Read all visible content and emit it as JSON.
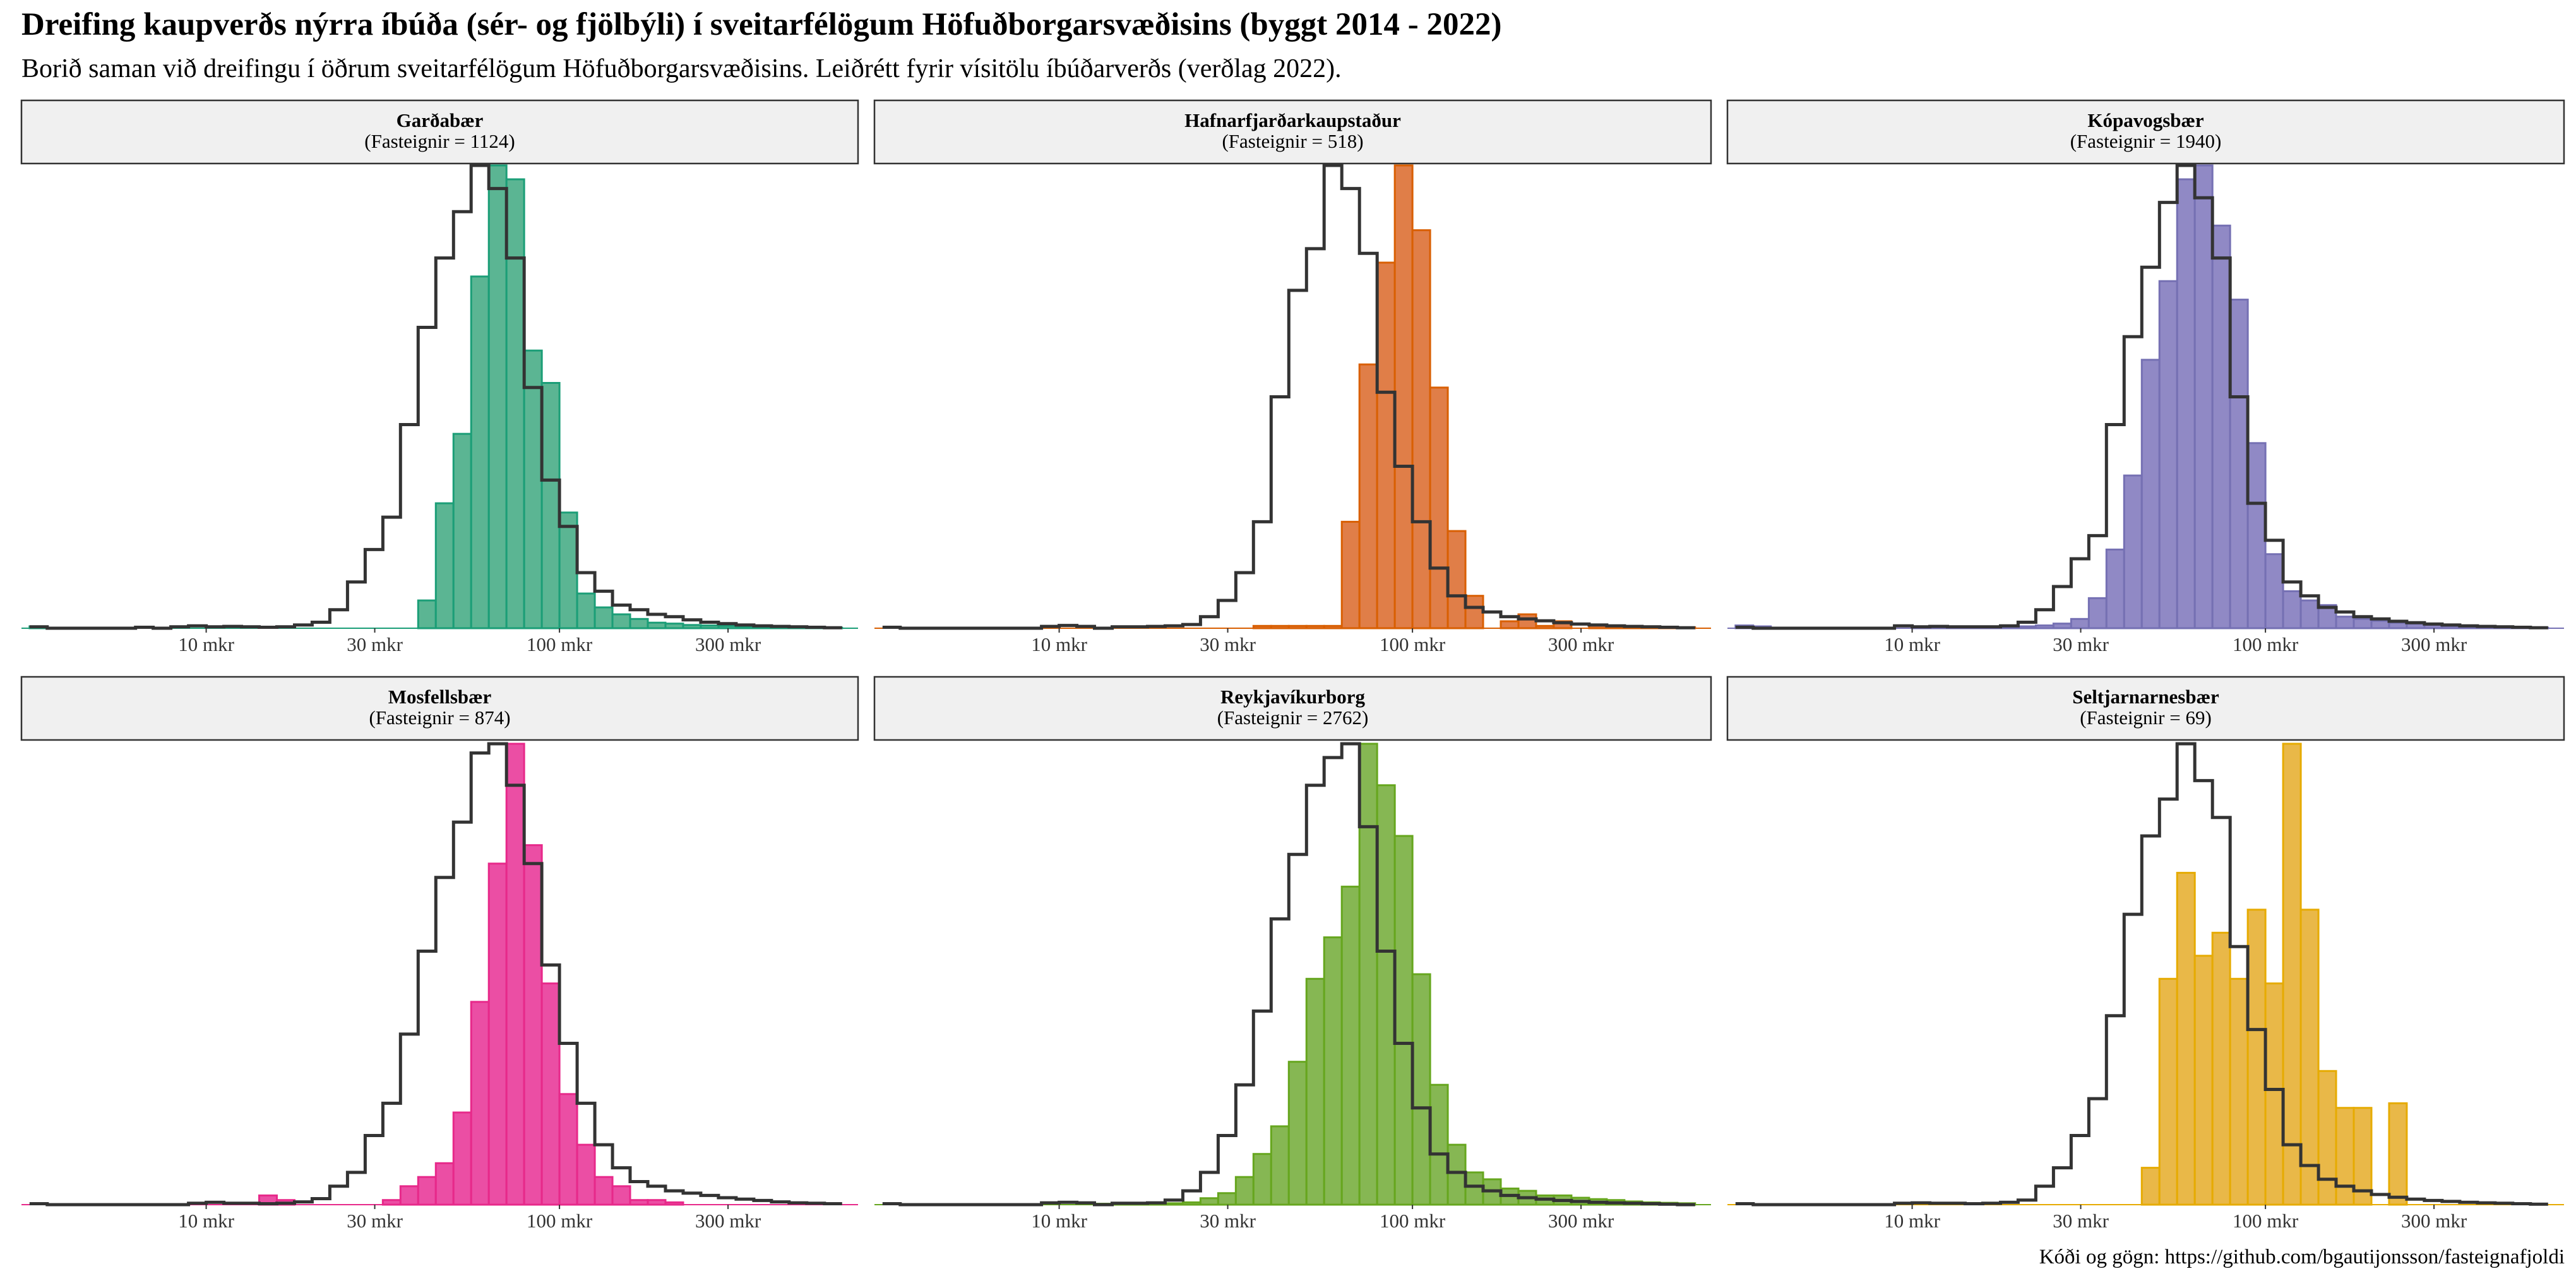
{
  "title": "Dreifing kaupverðs nýrra íbúða (sér- og fjölbýli) í sveitarfélögum Höfuðborgarsvæðisins (byggt 2014 - 2022)",
  "subtitle": "Borið saman við dreifingu í öðrum sveitarfélögum Höfuðborgarsvæðisins. Leiðrétt fyrir vísitölu íbúðarverðs (verðlag 2022).",
  "caption": "Kóði og gögn: https://github.com/bgautijonsson/fasteignafjoldi",
  "chart_data": {
    "type": "histogram",
    "x_scale": "log10",
    "x_unit": "mkr",
    "xlim": [
      3,
      700
    ],
    "x_tick_values": [
      10,
      30,
      100,
      300
    ],
    "x_tick_labels": [
      "10 mkr",
      "30 mkr",
      "100 mkr",
      "300 mkr"
    ],
    "bins": {
      "log10_start": 0.5,
      "log10_width": 0.05,
      "count": 46
    },
    "value_scale": "relative density (peak = 1)",
    "reference_series": "Önnur sveitarfélög Höfuðborgarsvæðisins (outline)",
    "panels": [
      {
        "name": "Garðabær",
        "count_label": "(Fasteignir = 1124)",
        "color": "#1B9E77",
        "fill": "#5BB593",
        "values": [
          0.004,
          0,
          0,
          0,
          0,
          0,
          0,
          0,
          0,
          0,
          0,
          0,
          0,
          0,
          0,
          0,
          0,
          0,
          0,
          0,
          0,
          0,
          0.06,
          0.27,
          0.42,
          0.76,
          1.0,
          0.97,
          0.6,
          0.53,
          0.25,
          0.075,
          0.045,
          0.03,
          0.02,
          0.012,
          0.01,
          0.007,
          0.006,
          0.005,
          0.004,
          0.003,
          0.002,
          0.002,
          0.001,
          0.001
        ],
        "reference": [
          0.003,
          0,
          0,
          0,
          0,
          0,
          0.002,
          0,
          0.003,
          0.005,
          0.003,
          0.004,
          0.003,
          0.002,
          0.003,
          0.007,
          0.013,
          0.04,
          0.1,
          0.17,
          0.24,
          0.44,
          0.65,
          0.8,
          0.9,
          1.0,
          0.95,
          0.8,
          0.52,
          0.32,
          0.22,
          0.12,
          0.08,
          0.05,
          0.04,
          0.03,
          0.025,
          0.018,
          0.013,
          0.01,
          0.007,
          0.005,
          0.004,
          0.003,
          0.002,
          0.001
        ]
      },
      {
        "name": "Hafnarfjarðarkaupstaður",
        "count_label": "(Fasteignir = 518)",
        "color": "#D95F02",
        "fill": "#E07E48",
        "values": [
          0,
          0,
          0,
          0,
          0,
          0,
          0,
          0,
          0,
          0,
          0,
          0,
          0,
          0,
          0,
          0,
          0,
          0,
          0,
          0,
          0,
          0.005,
          0.005,
          0.005,
          0.005,
          0.005,
          0.23,
          0.57,
          0.79,
          1.0,
          0.86,
          0.52,
          0.21,
          0.07,
          0,
          0.015,
          0.03,
          0.005,
          0.015,
          0,
          0.006,
          0.004,
          0.003,
          0.002,
          0.002,
          0.002
        ],
        "reference": [
          0.002,
          0,
          0,
          0,
          0,
          0,
          0,
          0,
          0,
          0.004,
          0.006,
          0.004,
          0,
          0.003,
          0.003,
          0.004,
          0.005,
          0.008,
          0.025,
          0.06,
          0.12,
          0.23,
          0.5,
          0.73,
          0.82,
          1.0,
          0.95,
          0.81,
          0.51,
          0.35,
          0.23,
          0.13,
          0.07,
          0.045,
          0.035,
          0.025,
          0.02,
          0.016,
          0.012,
          0.009,
          0.007,
          0.005,
          0.004,
          0.003,
          0.002,
          0.001
        ]
      },
      {
        "name": "Kópavogsbær",
        "count_label": "(Fasteignir = 1940)",
        "color": "#7570B3",
        "fill": "#9089C5",
        "values": [
          0.006,
          0.004,
          0,
          0,
          0,
          0,
          0,
          0,
          0,
          0,
          0.004,
          0.003,
          0.002,
          0.002,
          0.002,
          0.003,
          0.004,
          0.006,
          0.01,
          0.02,
          0.065,
          0.17,
          0.33,
          0.58,
          0.75,
          0.97,
          1.0,
          0.87,
          0.71,
          0.4,
          0.16,
          0.08,
          0.06,
          0.05,
          0.025,
          0.02,
          0.016,
          0.012,
          0.01,
          0.007,
          0.005,
          0.004,
          0.003,
          0.002,
          0.002,
          0.001
        ],
        "reference": [
          0.002,
          0,
          0,
          0,
          0,
          0,
          0,
          0,
          0,
          0.005,
          0.003,
          0.004,
          0.003,
          0.003,
          0.003,
          0.005,
          0.013,
          0.04,
          0.09,
          0.15,
          0.2,
          0.44,
          0.63,
          0.78,
          0.92,
          1.0,
          0.93,
          0.8,
          0.5,
          0.27,
          0.19,
          0.1,
          0.07,
          0.045,
          0.035,
          0.025,
          0.02,
          0.015,
          0.012,
          0.009,
          0.007,
          0.005,
          0.004,
          0.003,
          0.002,
          0.001
        ]
      },
      {
        "name": "Mosfellsbær",
        "count_label": "(Fasteignir = 874)",
        "color": "#E7298A",
        "fill": "#EB4EA4",
        "values": [
          0,
          0,
          0,
          0,
          0,
          0,
          0,
          0,
          0,
          0,
          0,
          0,
          0,
          0.02,
          0.01,
          0,
          0,
          0,
          0,
          0,
          0.01,
          0.04,
          0.06,
          0.09,
          0.2,
          0.44,
          0.74,
          1.0,
          0.78,
          0.48,
          0.24,
          0.13,
          0.06,
          0.04,
          0.01,
          0.01,
          0.005,
          0,
          0,
          0,
          0,
          0,
          0,
          0,
          0,
          0
        ],
        "reference": [
          0.002,
          0,
          0,
          0,
          0,
          0,
          0,
          0,
          0,
          0.003,
          0.005,
          0.003,
          0.003,
          0.002,
          0.003,
          0.006,
          0.013,
          0.04,
          0.07,
          0.15,
          0.22,
          0.37,
          0.55,
          0.71,
          0.83,
          0.98,
          1.0,
          0.91,
          0.74,
          0.52,
          0.35,
          0.22,
          0.13,
          0.08,
          0.05,
          0.04,
          0.03,
          0.025,
          0.02,
          0.015,
          0.012,
          0.009,
          0.006,
          0.004,
          0.003,
          0.002
        ]
      },
      {
        "name": "Reykjavíkurborg",
        "count_label": "(Fasteignir = 2762)",
        "color": "#66A61E",
        "fill": "#86B753",
        "values": [
          0,
          0,
          0,
          0,
          0,
          0,
          0,
          0,
          0,
          0,
          0,
          0,
          0.002,
          0.002,
          0.002,
          0.002,
          0.003,
          0.005,
          0.014,
          0.025,
          0.06,
          0.11,
          0.17,
          0.31,
          0.49,
          0.58,
          0.69,
          1.0,
          0.91,
          0.8,
          0.5,
          0.26,
          0.13,
          0.07,
          0.055,
          0.035,
          0.03,
          0.02,
          0.02,
          0.015,
          0.012,
          0.01,
          0.007,
          0.005,
          0.004,
          0.003
        ],
        "reference": [
          0.002,
          0,
          0,
          0,
          0,
          0,
          0,
          0,
          0,
          0.004,
          0.005,
          0.004,
          0,
          0.003,
          0.003,
          0.004,
          0.01,
          0.03,
          0.07,
          0.15,
          0.26,
          0.42,
          0.62,
          0.76,
          0.91,
          0.97,
          1.0,
          0.82,
          0.55,
          0.35,
          0.21,
          0.11,
          0.07,
          0.04,
          0.03,
          0.02,
          0.015,
          0.012,
          0.009,
          0.007,
          0.005,
          0.004,
          0.003,
          0.002,
          0.001,
          0
        ]
      },
      {
        "name": "Seltjarnarnesbær",
        "count_label": "(Fasteignir = 69)",
        "color": "#E6AB02",
        "fill": "#E9B848",
        "values": [
          0,
          0,
          0,
          0,
          0,
          0,
          0,
          0,
          0,
          0,
          0,
          0,
          0,
          0,
          0,
          0,
          0,
          0,
          0,
          0,
          0,
          0,
          0,
          0.08,
          0.49,
          0.72,
          0.54,
          0.59,
          0.49,
          0.64,
          0.48,
          1.0,
          0.64,
          0.29,
          0.21,
          0.21,
          0,
          0.22,
          0,
          0,
          0,
          0,
          0,
          0,
          0,
          0
        ],
        "reference": [
          0.002,
          0,
          0,
          0,
          0,
          0,
          0,
          0,
          0,
          0.003,
          0.004,
          0.003,
          0.003,
          0.002,
          0.003,
          0.005,
          0.01,
          0.04,
          0.08,
          0.15,
          0.23,
          0.41,
          0.63,
          0.8,
          0.88,
          1.0,
          0.92,
          0.84,
          0.56,
          0.38,
          0.25,
          0.13,
          0.085,
          0.055,
          0.04,
          0.03,
          0.022,
          0.016,
          0.012,
          0.009,
          0.007,
          0.005,
          0.004,
          0.003,
          0.002,
          0.001
        ]
      }
    ]
  }
}
